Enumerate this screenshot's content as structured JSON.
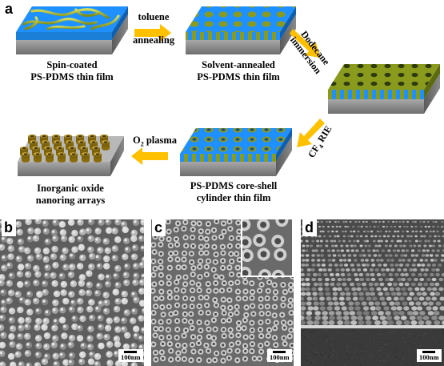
{
  "panels": {
    "a": {
      "letter": "a",
      "captions": {
        "spin_coated_line1": "Spin-coated",
        "spin_coated_line2": "PS-PDMS thin film",
        "solvent_annealed_line1": "Solvent-annealed",
        "solvent_annealed_line2": "PS-PDMS thin film",
        "core_shell_line1": "PS-PDMS core-shell",
        "core_shell_line2": "cylinder thin film",
        "oxide_line1": "Inorganic oxide",
        "oxide_line2": "nanoring arrays"
      },
      "steps": {
        "toluene_line1": "toluene",
        "toluene_line2": "annealing",
        "dodecane_line1": "Dodecane",
        "dodecane_line2": "immersion",
        "rie_prefix": "CF",
        "rie_sub": "4",
        "rie_suffix": " RIE",
        "plasma_prefix": "O",
        "plasma_sub": "2",
        "plasma_suffix": " plasma"
      }
    },
    "b": {
      "letter": "b",
      "scale": "100nm"
    },
    "c": {
      "letter": "c",
      "scale": "100nm"
    },
    "d": {
      "letter": "d",
      "scale": "100nm"
    }
  },
  "colors": {
    "pdms_blue": "#1e90ff",
    "ps_olive": "#8a9a1c",
    "substrate_gray": "#8c8c8c",
    "arrow_yellow": "#ffc000",
    "oxide_gold": "#a88418"
  }
}
